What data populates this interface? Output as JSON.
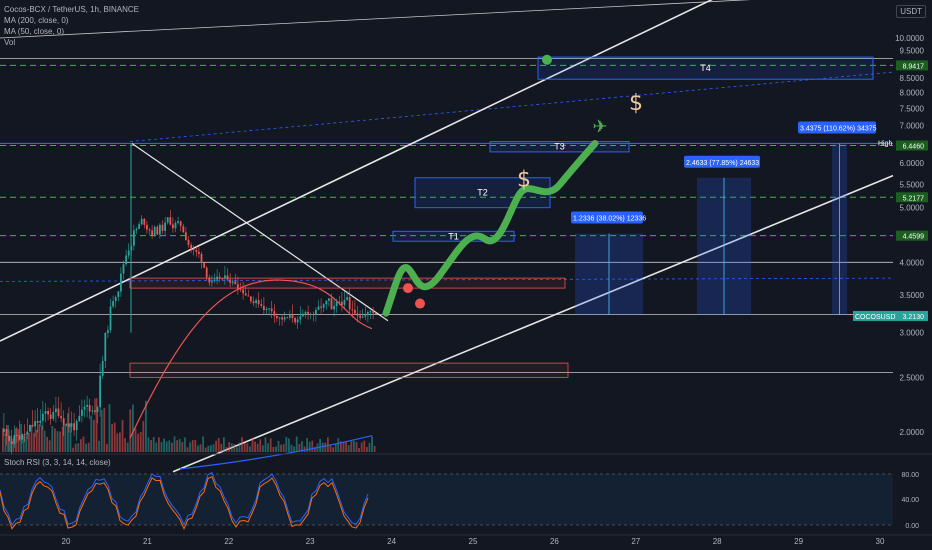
{
  "header": {
    "symbol_line": "Cocos-BCX / TetherUS, 1h, BINANCE",
    "ma200": "MA (200, close, 0)",
    "ma50": "MA (50, close, 0)",
    "vol": "Vol",
    "currency": "USDT"
  },
  "rsi": {
    "title": "Stoch RSI (3, 3, 14, 14, close)",
    "ticks": [
      "80.00",
      "40.00",
      "0.00"
    ]
  },
  "colors": {
    "background": "#131722",
    "up": "#26a69a",
    "down": "#ef5350",
    "arrow": "#4caf50",
    "box_blue": "#2962ff",
    "dashed_green": "#4caf50",
    "price_tag_green": "#1b5e20",
    "price_tag_blue": "#2962ff",
    "dollar": "#f0c8a0"
  },
  "chart_data": {
    "type": "candlestick",
    "price_scale": "log",
    "ylim": [
      1.7,
      13
    ],
    "x_ticks": [
      "20",
      "21",
      "22",
      "23",
      "24",
      "25",
      "26",
      "27",
      "28",
      "29",
      "30"
    ],
    "y_ticks": [
      "10.0000",
      "9.5000",
      "8.5000",
      "8.0000",
      "7.5000",
      "7.0000",
      "6.0000",
      "5.5000",
      "5.0000",
      "4.0000",
      "3.5000",
      "3.0000",
      "2.5000",
      "2.0000"
    ],
    "price_tags": [
      {
        "label": "8.9417",
        "style": "green"
      },
      {
        "label": "High",
        "value": "6.5000",
        "style": "dark"
      },
      {
        "label": "6.4460",
        "style": "green"
      },
      {
        "label": "5.2177",
        "style": "green"
      },
      {
        "label": "4.4599",
        "style": "green"
      },
      {
        "label": "COCOSUSDT",
        "value": "3.2130",
        "style": "green"
      }
    ],
    "targets": [
      "T1",
      "T2",
      "T3",
      "T4"
    ],
    "measure_labels": [
      "1.2336 (38.02%) 12336",
      "2.4633 (77.85%) 24633",
      "3.4375 (110.62%) 34375"
    ],
    "annotations": [
      "$",
      "$"
    ]
  }
}
